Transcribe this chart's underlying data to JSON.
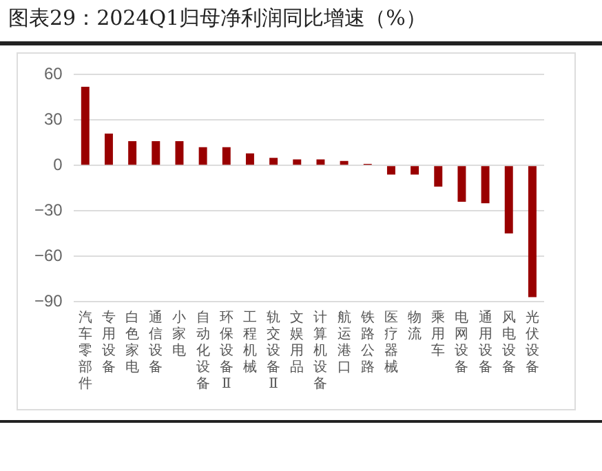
{
  "chart_data": {
    "type": "bar",
    "title": "图表29：2024Q1归母净利润同比增速（%）",
    "categories": [
      "汽车零部件",
      "专用设备",
      "白色家电",
      "通信设备",
      "小家电",
      "自动化设备",
      "环保设备Ⅱ",
      "工程机械",
      "轨交设备Ⅱ",
      "文娱用品",
      "计算机设备",
      "航运港口",
      "铁路公路",
      "医疗器械",
      "物流",
      "乘用车",
      "电网设备",
      "通用设备",
      "风电设备",
      "光伏设备"
    ],
    "values": [
      52,
      21,
      16,
      16,
      16,
      12,
      12,
      8,
      5,
      4,
      4,
      3,
      1,
      -6,
      -6,
      -14,
      -24,
      -25,
      -45,
      -87
    ],
    "color": "#990000",
    "ylim": [
      -90,
      60
    ],
    "yticks": [
      -90,
      -60,
      -30,
      0,
      30,
      60
    ],
    "grid": "y",
    "legend": false
  }
}
